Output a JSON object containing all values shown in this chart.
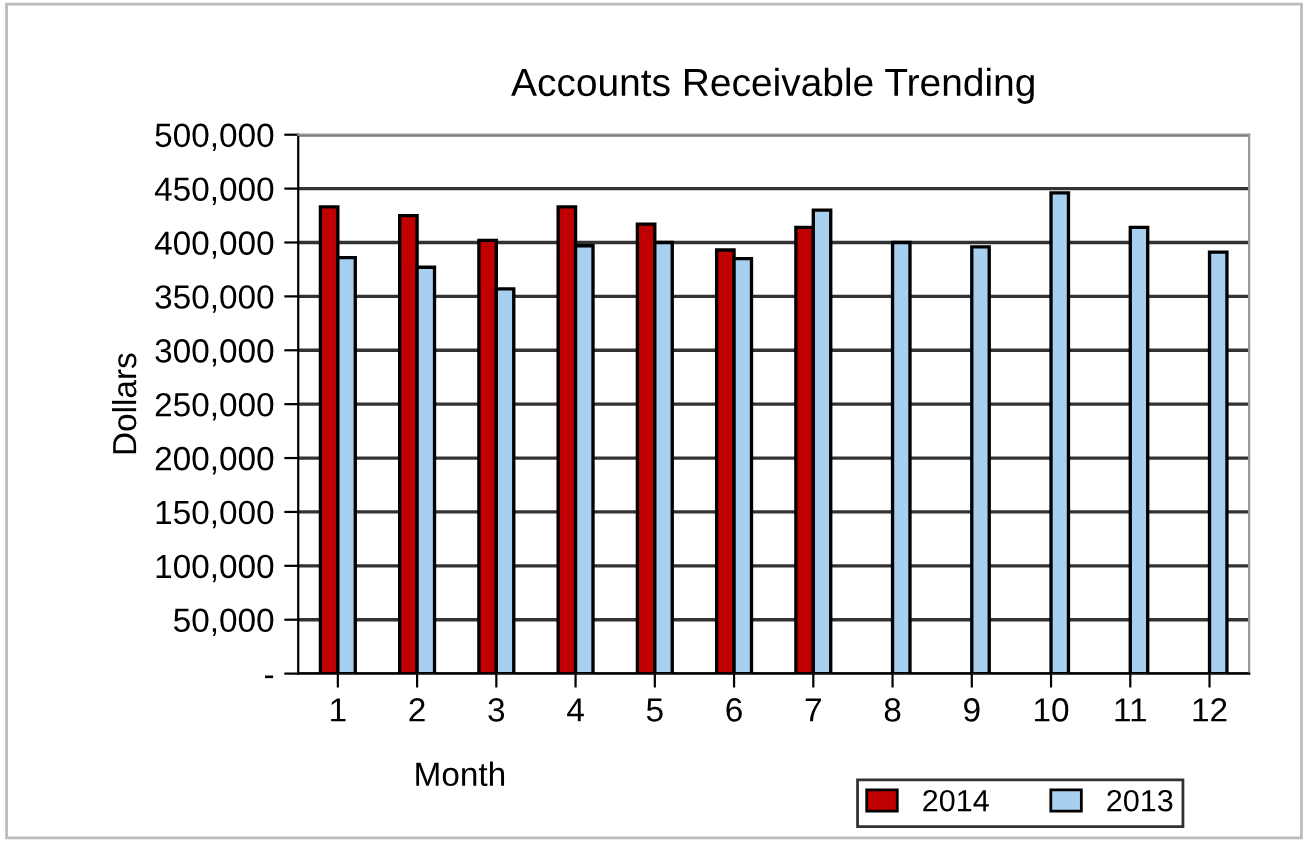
{
  "chart_data": {
    "type": "bar",
    "title": "Accounts Receivable Trending",
    "xlabel": "Month",
    "ylabel": "Dollars",
    "categories": [
      "1",
      "2",
      "3",
      "4",
      "5",
      "6",
      "7",
      "8",
      "9",
      "10",
      "11",
      "12"
    ],
    "series": [
      {
        "name": "2014",
        "color": "#c00000",
        "values": [
          433000,
          425000,
          402000,
          433000,
          417000,
          393000,
          414000,
          null,
          null,
          null,
          null,
          null
        ]
      },
      {
        "name": "2013",
        "color": "#a6cff0",
        "values": [
          386000,
          377000,
          357000,
          397000,
          400000,
          385000,
          430000,
          400000,
          396000,
          446000,
          414000,
          391000
        ]
      }
    ],
    "ylim": [
      0,
      500000
    ],
    "yticks": [
      {
        "value": 0,
        "label": "-"
      },
      {
        "value": 50000,
        "label": "50,000"
      },
      {
        "value": 100000,
        "label": "100,000"
      },
      {
        "value": 150000,
        "label": "150,000"
      },
      {
        "value": 200000,
        "label": "200,000"
      },
      {
        "value": 250000,
        "label": "250,000"
      },
      {
        "value": 300000,
        "label": "300,000"
      },
      {
        "value": 350000,
        "label": "350,000"
      },
      {
        "value": 400000,
        "label": "400,000"
      },
      {
        "value": 450000,
        "label": "450,000"
      },
      {
        "value": 500000,
        "label": "500,000"
      }
    ],
    "grid": "y",
    "legend": "bottom right"
  }
}
